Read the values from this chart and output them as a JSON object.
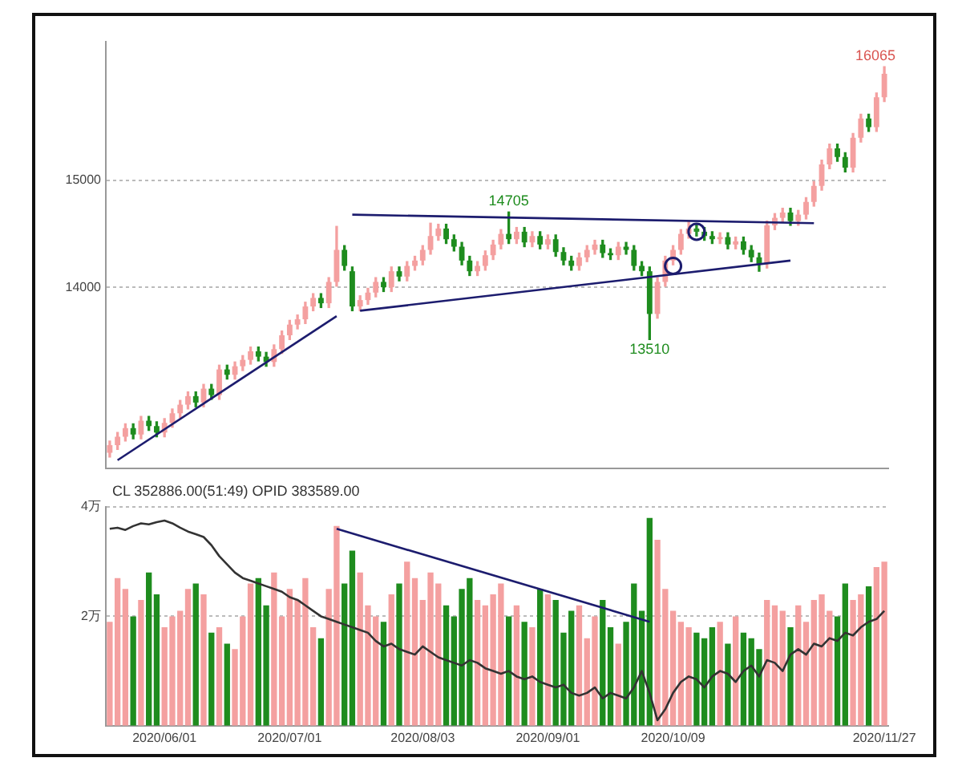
{
  "chart_data": [
    {
      "type": "candlestick",
      "tick_labels": "y",
      "grid": "y",
      "ylim": [
        12300,
        16300
      ],
      "yticks": [
        14000,
        15000
      ],
      "categories": [
        null,
        null,
        null,
        null,
        null,
        null,
        null,
        "2020/06/01",
        null,
        null,
        null,
        null,
        null,
        null,
        null,
        null,
        null,
        null,
        null,
        null,
        null,
        null,
        null,
        "2020/07/01",
        null,
        null,
        null,
        null,
        null,
        null,
        null,
        null,
        null,
        null,
        null,
        null,
        null,
        null,
        null,
        null,
        "2020/08/03",
        null,
        null,
        null,
        null,
        null,
        null,
        null,
        null,
        null,
        null,
        null,
        null,
        null,
        null,
        null,
        "2020/09/01",
        null,
        null,
        null,
        null,
        null,
        null,
        null,
        null,
        null,
        null,
        null,
        null,
        null,
        null,
        null,
        "2020/10/09",
        null,
        null,
        null,
        null,
        null,
        null,
        null,
        null,
        null,
        null,
        null,
        null,
        null,
        null,
        null,
        null,
        null,
        null,
        null,
        null,
        null,
        null,
        null,
        null,
        null,
        null,
        "2020/11/27"
      ],
      "ohlc": [
        [
          12450,
          12560,
          12410,
          12520
        ],
        [
          12520,
          12640,
          12480,
          12600
        ],
        [
          12600,
          12720,
          12560,
          12680
        ],
        [
          12680,
          12720,
          12580,
          12620
        ],
        [
          12620,
          12790,
          12580,
          12750
        ],
        [
          12750,
          12790,
          12660,
          12700
        ],
        [
          12700,
          12740,
          12600,
          12640
        ],
        [
          12640,
          12770,
          12600,
          12730
        ],
        [
          12730,
          12860,
          12690,
          12820
        ],
        [
          12820,
          12940,
          12780,
          12900
        ],
        [
          12900,
          13020,
          12860,
          12980
        ],
        [
          12980,
          13020,
          12880,
          12920
        ],
        [
          12920,
          13090,
          12880,
          13050
        ],
        [
          13050,
          13090,
          12950,
          12990
        ],
        [
          12990,
          13270,
          12950,
          13230
        ],
        [
          13230,
          13270,
          13140,
          13180
        ],
        [
          13180,
          13300,
          13140,
          13260
        ],
        [
          13260,
          13360,
          13220,
          13320
        ],
        [
          13320,
          13440,
          13280,
          13400
        ],
        [
          13400,
          13440,
          13310,
          13350
        ],
        [
          13350,
          13390,
          13260,
          13300
        ],
        [
          13300,
          13460,
          13260,
          13420
        ],
        [
          13420,
          13590,
          13380,
          13550
        ],
        [
          13550,
          13690,
          13510,
          13650
        ],
        [
          13650,
          13740,
          13610,
          13700
        ],
        [
          13700,
          13860,
          13660,
          13820
        ],
        [
          13820,
          13940,
          13780,
          13900
        ],
        [
          13900,
          13940,
          13810,
          13850
        ],
        [
          13850,
          14090,
          13810,
          14050
        ],
        [
          14050,
          14570,
          14010,
          14350
        ],
        [
          14350,
          14390,
          14160,
          14200
        ],
        [
          14150,
          14190,
          13780,
          13820
        ],
        [
          13820,
          13920,
          13780,
          13880
        ],
        [
          13880,
          13990,
          13840,
          13950
        ],
        [
          13950,
          14090,
          13910,
          14050
        ],
        [
          14050,
          14090,
          13960,
          14000
        ],
        [
          14000,
          14190,
          13960,
          14150
        ],
        [
          14150,
          14190,
          14060,
          14100
        ],
        [
          14100,
          14240,
          14060,
          14200
        ],
        [
          14200,
          14290,
          14160,
          14250
        ],
        [
          14250,
          14390,
          14210,
          14350
        ],
        [
          14350,
          14600,
          14310,
          14480
        ],
        [
          14480,
          14590,
          14440,
          14550
        ],
        [
          14550,
          14590,
          14410,
          14450
        ],
        [
          14450,
          14490,
          14340,
          14380
        ],
        [
          14380,
          14420,
          14210,
          14250
        ],
        [
          14250,
          14290,
          14110,
          14150
        ],
        [
          14150,
          14240,
          14110,
          14200
        ],
        [
          14200,
          14340,
          14160,
          14300
        ],
        [
          14300,
          14440,
          14260,
          14400
        ],
        [
          14400,
          14540,
          14360,
          14500
        ],
        [
          14500,
          14705,
          14410,
          14450
        ],
        [
          14450,
          14560,
          14410,
          14520
        ],
        [
          14520,
          14560,
          14380,
          14420
        ],
        [
          14420,
          14520,
          14380,
          14480
        ],
        [
          14480,
          14520,
          14360,
          14400
        ],
        [
          14400,
          14490,
          14360,
          14450
        ],
        [
          14450,
          14490,
          14290,
          14330
        ],
        [
          14330,
          14370,
          14210,
          14250
        ],
        [
          14250,
          14290,
          14160,
          14200
        ],
        [
          14200,
          14320,
          14160,
          14280
        ],
        [
          14280,
          14390,
          14240,
          14350
        ],
        [
          14350,
          14440,
          14310,
          14400
        ],
        [
          14400,
          14440,
          14280,
          14320
        ],
        [
          14320,
          14360,
          14260,
          14300
        ],
        [
          14300,
          14420,
          14260,
          14380
        ],
        [
          14380,
          14420,
          14310,
          14350
        ],
        [
          14350,
          14390,
          14160,
          14200
        ],
        [
          14200,
          14240,
          14110,
          14150
        ],
        [
          14150,
          14190,
          13510,
          13750
        ],
        [
          13750,
          14090,
          13710,
          14050
        ],
        [
          14050,
          14290,
          14010,
          14250
        ],
        [
          14250,
          14390,
          14210,
          14350
        ],
        [
          14350,
          14540,
          14310,
          14500
        ],
        [
          14500,
          14620,
          14460,
          14550
        ],
        [
          14550,
          14590,
          14480,
          14520
        ],
        [
          14520,
          14560,
          14440,
          14480
        ],
        [
          14480,
          14520,
          14410,
          14450
        ],
        [
          14450,
          14510,
          14410,
          14470
        ],
        [
          14470,
          14510,
          14360,
          14400
        ],
        [
          14400,
          14470,
          14360,
          14430
        ],
        [
          14430,
          14470,
          14310,
          14350
        ],
        [
          14350,
          14390,
          14240,
          14280
        ],
        [
          14280,
          14320,
          14150,
          14220
        ],
        [
          14220,
          14620,
          14180,
          14580
        ],
        [
          14580,
          14690,
          14540,
          14650
        ],
        [
          14650,
          14740,
          14610,
          14700
        ],
        [
          14700,
          14740,
          14580,
          14620
        ],
        [
          14620,
          14720,
          14580,
          14680
        ],
        [
          14680,
          14840,
          14640,
          14800
        ],
        [
          14800,
          14990,
          14760,
          14950
        ],
        [
          14950,
          15190,
          14910,
          15150
        ],
        [
          15150,
          15340,
          15110,
          15300
        ],
        [
          15300,
          15340,
          15180,
          15220
        ],
        [
          15220,
          15260,
          15080,
          15120
        ],
        [
          15120,
          15440,
          15080,
          15400
        ],
        [
          15400,
          15620,
          15360,
          15580
        ],
        [
          15580,
          15620,
          15460,
          15500
        ],
        [
          15500,
          15820,
          15460,
          15780
        ],
        [
          15780,
          16065,
          15740,
          16000
        ]
      ],
      "colors": [
        "#f4a0a0",
        "#f4a0a0",
        "#f4a0a0",
        "#1e8c1e",
        "#f4a0a0",
        "#1e8c1e",
        "#1e8c1e",
        "#f4a0a0",
        "#f4a0a0",
        "#f4a0a0",
        "#f4a0a0",
        "#1e8c1e",
        "#f4a0a0",
        "#1e8c1e",
        "#f4a0a0",
        "#1e8c1e",
        "#f4a0a0",
        "#f4a0a0",
        "#f4a0a0",
        "#1e8c1e",
        "#1e8c1e",
        "#f4a0a0",
        "#f4a0a0",
        "#f4a0a0",
        "#f4a0a0",
        "#f4a0a0",
        "#f4a0a0",
        "#1e8c1e",
        "#f4a0a0",
        "#f4a0a0",
        "#1e8c1e",
        "#1e8c1e",
        "#f4a0a0",
        "#f4a0a0",
        "#f4a0a0",
        "#1e8c1e",
        "#f4a0a0",
        "#1e8c1e",
        "#f4a0a0",
        "#f4a0a0",
        "#f4a0a0",
        "#f4a0a0",
        "#f4a0a0",
        "#1e8c1e",
        "#1e8c1e",
        "#1e8c1e",
        "#1e8c1e",
        "#f4a0a0",
        "#f4a0a0",
        "#f4a0a0",
        "#f4a0a0",
        "#1e8c1e",
        "#f4a0a0",
        "#1e8c1e",
        "#f4a0a0",
        "#1e8c1e",
        "#f4a0a0",
        "#1e8c1e",
        "#1e8c1e",
        "#1e8c1e",
        "#f4a0a0",
        "#f4a0a0",
        "#f4a0a0",
        "#1e8c1e",
        "#1e8c1e",
        "#f4a0a0",
        "#1e8c1e",
        "#1e8c1e",
        "#1e8c1e",
        "#1e8c1e",
        "#f4a0a0",
        "#f4a0a0",
        "#f4a0a0",
        "#f4a0a0",
        "#f4a0a0",
        "#1e8c1e",
        "#1e8c1e",
        "#1e8c1e",
        "#f4a0a0",
        "#1e8c1e",
        "#f4a0a0",
        "#1e8c1e",
        "#1e8c1e",
        "#1e8c1e",
        "#f4a0a0",
        "#f4a0a0",
        "#f4a0a0",
        "#1e8c1e",
        "#f4a0a0",
        "#f4a0a0",
        "#f4a0a0",
        "#f4a0a0",
        "#f4a0a0",
        "#1e8c1e",
        "#1e8c1e",
        "#f4a0a0",
        "#f4a0a0",
        "#1e8c1e",
        "#f4a0a0",
        "#f4a0a0"
      ],
      "annotations": [
        {
          "text": "14705",
          "y": 14705
        },
        {
          "text": "13510",
          "y": 13510
        },
        {
          "text": "16065",
          "y": 16065
        }
      ],
      "series": [
        {
          "type": "line",
          "marker": "none",
          "color": "#1c1c6e",
          "values": [
            null,
            12380,
            null,
            null,
            null,
            null,
            null,
            null,
            null,
            null,
            null,
            null,
            null,
            null,
            null,
            null,
            null,
            null,
            null,
            null,
            null,
            null,
            null,
            null,
            null,
            null,
            null,
            null,
            null,
            13730,
            null,
            null,
            null,
            null,
            null,
            null,
            null,
            null,
            null,
            null,
            null,
            null,
            null,
            null,
            null,
            null,
            null,
            null,
            null,
            null,
            null,
            null,
            null,
            null,
            null,
            null,
            null,
            null,
            null,
            null,
            null,
            null,
            null,
            null,
            null,
            null,
            null,
            null,
            null,
            null,
            null,
            null,
            null,
            null,
            null,
            null,
            null,
            null,
            null,
            null,
            null,
            null,
            null,
            null,
            null,
            null,
            null,
            null,
            null,
            null,
            null,
            null,
            null,
            null,
            null,
            null,
            null,
            null,
            null,
            null
          ]
        },
        {
          "type": "line",
          "marker": "none",
          "color": "#1c1c6e",
          "values": [
            null,
            null,
            null,
            null,
            null,
            null,
            null,
            null,
            null,
            null,
            null,
            null,
            null,
            null,
            null,
            null,
            null,
            null,
            null,
            null,
            null,
            null,
            null,
            null,
            null,
            null,
            null,
            null,
            null,
            null,
            null,
            14680,
            null,
            null,
            null,
            null,
            null,
            null,
            null,
            null,
            null,
            null,
            null,
            null,
            null,
            null,
            null,
            null,
            null,
            null,
            null,
            null,
            null,
            null,
            null,
            null,
            null,
            null,
            null,
            null,
            null,
            null,
            null,
            null,
            null,
            null,
            null,
            null,
            null,
            null,
            null,
            null,
            null,
            null,
            null,
            null,
            null,
            null,
            null,
            null,
            null,
            null,
            null,
            null,
            null,
            null,
            null,
            null,
            null,
            null,
            14600,
            null,
            null,
            null,
            null,
            null,
            null,
            null,
            null,
            null
          ]
        },
        {
          "type": "line",
          "marker": "none",
          "color": "#1c1c6e",
          "values": [
            null,
            null,
            null,
            null,
            null,
            null,
            null,
            null,
            null,
            null,
            null,
            null,
            null,
            null,
            null,
            null,
            null,
            null,
            null,
            null,
            null,
            null,
            null,
            null,
            null,
            null,
            null,
            null,
            null,
            null,
            null,
            null,
            13780,
            null,
            null,
            null,
            null,
            null,
            null,
            null,
            null,
            null,
            null,
            null,
            null,
            null,
            null,
            null,
            null,
            null,
            null,
            null,
            null,
            null,
            null,
            null,
            null,
            null,
            null,
            null,
            null,
            null,
            null,
            null,
            null,
            null,
            null,
            null,
            null,
            null,
            null,
            null,
            null,
            null,
            null,
            null,
            null,
            null,
            null,
            null,
            null,
            null,
            null,
            null,
            null,
            null,
            null,
            14250,
            null,
            null,
            null,
            null,
            null,
            null,
            null,
            null,
            null,
            null,
            null,
            null
          ]
        },
        {
          "type": "scatter",
          "marker": "circle",
          "color": "#1c1c6e",
          "values": [
            null,
            null,
            null,
            null,
            null,
            null,
            null,
            null,
            null,
            null,
            null,
            null,
            null,
            null,
            null,
            null,
            null,
            null,
            null,
            null,
            null,
            null,
            null,
            null,
            null,
            null,
            null,
            null,
            null,
            null,
            null,
            null,
            null,
            null,
            null,
            null,
            null,
            null,
            null,
            null,
            null,
            null,
            null,
            null,
            null,
            null,
            null,
            null,
            null,
            null,
            null,
            null,
            null,
            null,
            null,
            null,
            null,
            null,
            null,
            null,
            null,
            null,
            null,
            null,
            null,
            null,
            null,
            null,
            null,
            null,
            null,
            null,
            14200,
            null,
            null,
            14520,
            null,
            null,
            null,
            null,
            null,
            null,
            null,
            null,
            null,
            null,
            null,
            null,
            null,
            null,
            null,
            null,
            null,
            null,
            null,
            null,
            null,
            null,
            null,
            null
          ]
        }
      ]
    },
    {
      "type": "bar",
      "grid": "y",
      "ylim": [
        0,
        4
      ],
      "yticks": [
        {
          "value": 2,
          "label": "2万"
        },
        {
          "value": 4,
          "label": "4万"
        }
      ],
      "annotations": [
        "CL 352886.00(51:49) OPID 383589.00"
      ],
      "categories": [
        null,
        null,
        null,
        null,
        null,
        null,
        null,
        "2020/06/01",
        null,
        null,
        null,
        null,
        null,
        null,
        null,
        null,
        null,
        null,
        null,
        null,
        null,
        null,
        null,
        "2020/07/01",
        null,
        null,
        null,
        null,
        null,
        null,
        null,
        null,
        null,
        null,
        null,
        null,
        null,
        null,
        null,
        null,
        "2020/08/03",
        null,
        null,
        null,
        null,
        null,
        null,
        null,
        null,
        null,
        null,
        null,
        null,
        null,
        null,
        null,
        "2020/09/01",
        null,
        null,
        null,
        null,
        null,
        null,
        null,
        null,
        null,
        null,
        null,
        null,
        null,
        null,
        null,
        "2020/10/09",
        null,
        null,
        null,
        null,
        null,
        null,
        null,
        null,
        null,
        null,
        null,
        null,
        null,
        null,
        null,
        null,
        null,
        null,
        null,
        null,
        null,
        null,
        null,
        null,
        null,
        null,
        "2020/11/27"
      ],
      "values": [
        1.9,
        2.7,
        2.5,
        2.0,
        2.3,
        2.8,
        2.4,
        1.8,
        2.0,
        2.1,
        2.5,
        2.6,
        2.4,
        1.7,
        1.8,
        1.5,
        1.4,
        2.0,
        2.6,
        2.7,
        2.2,
        2.8,
        2.0,
        2.5,
        2.3,
        2.7,
        1.8,
        1.6,
        2.5,
        3.65,
        2.6,
        3.2,
        2.8,
        2.2,
        2.0,
        1.9,
        2.4,
        2.6,
        3.0,
        2.7,
        2.3,
        2.8,
        2.6,
        2.2,
        2.0,
        2.5,
        2.7,
        2.3,
        2.2,
        2.4,
        2.6,
        2.0,
        2.2,
        1.9,
        1.8,
        2.5,
        2.4,
        2.3,
        1.7,
        2.1,
        2.2,
        1.6,
        2.0,
        2.3,
        1.8,
        1.5,
        1.9,
        2.6,
        2.1,
        3.8,
        3.4,
        2.5,
        2.1,
        1.9,
        1.8,
        1.7,
        1.6,
        1.8,
        1.9,
        1.5,
        2.0,
        1.7,
        1.6,
        1.4,
        2.3,
        2.2,
        2.1,
        1.8,
        2.2,
        1.9,
        2.3,
        2.4,
        2.1,
        2.0,
        2.6,
        2.3,
        2.4,
        2.55,
        2.9,
        3.0
      ],
      "colors": [
        "#f4a0a0",
        "#f4a0a0",
        "#f4a0a0",
        "#1e8c1e",
        "#f4a0a0",
        "#1e8c1e",
        "#1e8c1e",
        "#f4a0a0",
        "#f4a0a0",
        "#f4a0a0",
        "#f4a0a0",
        "#1e8c1e",
        "#f4a0a0",
        "#1e8c1e",
        "#f4a0a0",
        "#1e8c1e",
        "#f4a0a0",
        "#f4a0a0",
        "#f4a0a0",
        "#1e8c1e",
        "#1e8c1e",
        "#f4a0a0",
        "#f4a0a0",
        "#f4a0a0",
        "#f4a0a0",
        "#f4a0a0",
        "#f4a0a0",
        "#1e8c1e",
        "#f4a0a0",
        "#f4a0a0",
        "#1e8c1e",
        "#1e8c1e",
        "#f4a0a0",
        "#f4a0a0",
        "#f4a0a0",
        "#1e8c1e",
        "#f4a0a0",
        "#1e8c1e",
        "#f4a0a0",
        "#f4a0a0",
        "#f4a0a0",
        "#f4a0a0",
        "#f4a0a0",
        "#1e8c1e",
        "#1e8c1e",
        "#1e8c1e",
        "#1e8c1e",
        "#f4a0a0",
        "#f4a0a0",
        "#f4a0a0",
        "#f4a0a0",
        "#1e8c1e",
        "#f4a0a0",
        "#1e8c1e",
        "#f4a0a0",
        "#1e8c1e",
        "#f4a0a0",
        "#1e8c1e",
        "#1e8c1e",
        "#1e8c1e",
        "#f4a0a0",
        "#f4a0a0",
        "#f4a0a0",
        "#1e8c1e",
        "#1e8c1e",
        "#f4a0a0",
        "#1e8c1e",
        "#1e8c1e",
        "#1e8c1e",
        "#1e8c1e",
        "#f4a0a0",
        "#f4a0a0",
        "#f4a0a0",
        "#f4a0a0",
        "#f4a0a0",
        "#1e8c1e",
        "#1e8c1e",
        "#1e8c1e",
        "#f4a0a0",
        "#1e8c1e",
        "#f4a0a0",
        "#1e8c1e",
        "#1e8c1e",
        "#1e8c1e",
        "#f4a0a0",
        "#f4a0a0",
        "#f4a0a0",
        "#1e8c1e",
        "#f4a0a0",
        "#f4a0a0",
        "#f4a0a0",
        "#f4a0a0",
        "#f4a0a0",
        "#1e8c1e",
        "#1e8c1e",
        "#f4a0a0",
        "#f4a0a0",
        "#1e8c1e",
        "#f4a0a0",
        "#f4a0a0"
      ],
      "series": [
        {
          "type": "line",
          "marker": "none",
          "color": "#333333",
          "values": [
            3.6,
            3.62,
            3.58,
            3.65,
            3.7,
            3.68,
            3.72,
            3.75,
            3.7,
            3.62,
            3.55,
            3.5,
            3.45,
            3.3,
            3.1,
            2.95,
            2.8,
            2.7,
            2.65,
            2.6,
            2.55,
            2.5,
            2.45,
            2.35,
            2.3,
            2.2,
            2.1,
            2.0,
            1.95,
            1.9,
            1.85,
            1.8,
            1.75,
            1.7,
            1.55,
            1.45,
            1.5,
            1.4,
            1.35,
            1.3,
            1.45,
            1.35,
            1.25,
            1.2,
            1.15,
            1.1,
            1.2,
            1.15,
            1.05,
            1.0,
            0.95,
            1.0,
            0.9,
            0.85,
            0.9,
            0.8,
            0.75,
            0.7,
            0.75,
            0.6,
            0.55,
            0.6,
            0.7,
            0.5,
            0.6,
            0.55,
            0.5,
            0.7,
            1.0,
            0.6,
            0.1,
            0.3,
            0.6,
            0.8,
            0.9,
            0.85,
            0.7,
            0.9,
            1.0,
            0.95,
            0.8,
            1.0,
            1.1,
            0.9,
            1.2,
            1.15,
            1.0,
            1.3,
            1.4,
            1.3,
            1.5,
            1.45,
            1.6,
            1.55,
            1.7,
            1.65,
            1.8,
            1.9,
            1.95,
            2.1
          ]
        },
        {
          "type": "line",
          "marker": "none",
          "color": "#1c1c6e",
          "values": [
            null,
            null,
            null,
            null,
            null,
            null,
            null,
            null,
            null,
            null,
            null,
            null,
            null,
            null,
            null,
            null,
            null,
            null,
            null,
            null,
            null,
            null,
            null,
            null,
            null,
            null,
            null,
            null,
            null,
            3.6,
            null,
            null,
            null,
            null,
            null,
            null,
            null,
            null,
            null,
            null,
            null,
            null,
            null,
            null,
            null,
            null,
            null,
            null,
            null,
            null,
            null,
            null,
            null,
            null,
            null,
            null,
            null,
            null,
            null,
            null,
            null,
            null,
            null,
            null,
            null,
            null,
            null,
            null,
            null,
            1.9,
            null,
            null,
            null,
            null,
            null,
            null,
            null,
            null,
            null,
            null,
            null,
            null,
            null,
            null,
            null,
            null,
            null,
            null,
            null,
            null,
            null,
            null,
            null,
            null,
            null,
            null,
            null,
            null,
            null,
            null
          ]
        }
      ]
    }
  ]
}
